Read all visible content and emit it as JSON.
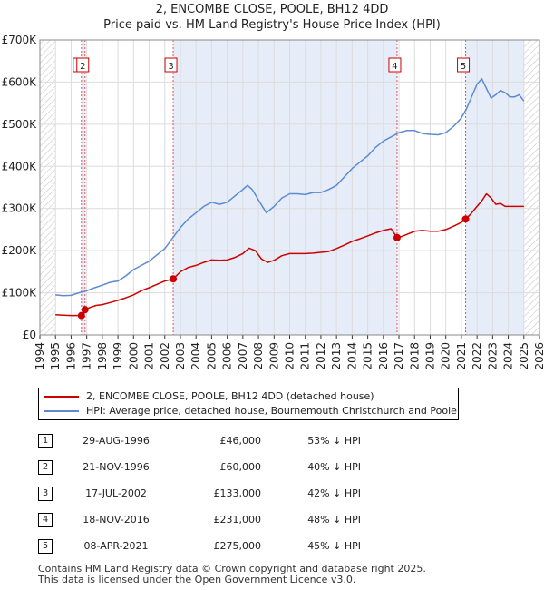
{
  "chart_data": {
    "type": "line",
    "title": "2, ENCOMBE CLOSE, POOLE, BH12 4DD",
    "subtitle": "Price paid vs. HM Land Registry's House Price Index (HPI)",
    "xlim": [
      1994,
      2026
    ],
    "ylim": [
      0,
      700000
    ],
    "y_ticks": [
      0,
      100000,
      200000,
      300000,
      400000,
      500000,
      600000,
      700000
    ],
    "y_tick_labels": [
      "£0",
      "£100K",
      "£200K",
      "£300K",
      "£400K",
      "£500K",
      "£600K",
      "£700K"
    ],
    "x_ticks": [
      1994,
      1995,
      1996,
      1997,
      1998,
      1999,
      2000,
      2001,
      2002,
      2003,
      2004,
      2005,
      2006,
      2007,
      2008,
      2009,
      2010,
      2011,
      2012,
      2013,
      2014,
      2015,
      2016,
      2017,
      2018,
      2019,
      2020,
      2021,
      2022,
      2023,
      2024,
      2025,
      2026
    ],
    "x_tick_labels": [
      "1994",
      "1995",
      "1996",
      "1997",
      "1998",
      "1999",
      "2000",
      "2001",
      "2002",
      "2003",
      "2004",
      "2005",
      "2006",
      "2007",
      "2008",
      "2009",
      "2010",
      "2011",
      "2012",
      "2013",
      "2014",
      "2015",
      "2016",
      "2017",
      "2018",
      "2019",
      "2020",
      "2021",
      "2022",
      "2023",
      "2024",
      "2025",
      "2026"
    ],
    "grid": true,
    "shaded_ranges": [
      [
        1996.66,
        1996.89
      ],
      [
        2002.54,
        2016.88
      ],
      [
        2021.27,
        2025.0
      ]
    ],
    "hatched_ranges": [
      [
        1994,
        1995
      ],
      [
        2025.0,
        2026
      ]
    ],
    "series": [
      {
        "name": "HPI: Average price, detached house, Bournemouth Christchurch and Poole",
        "color": "#5b8bd0",
        "x": [
          1995.0,
          1995.5,
          1996.0,
          1996.5,
          1997.0,
          1997.5,
          1998.0,
          1998.5,
          1999.0,
          1999.5,
          2000.0,
          2000.5,
          2001.0,
          2001.5,
          2002.0,
          2002.5,
          2003.0,
          2003.5,
          2004.0,
          2004.5,
          2005.0,
          2005.5,
          2006.0,
          2006.5,
          2007.0,
          2007.3,
          2007.6,
          2008.0,
          2008.5,
          2009.0,
          2009.5,
          2010.0,
          2010.5,
          2011.0,
          2011.5,
          2012.0,
          2012.5,
          2013.0,
          2013.5,
          2014.0,
          2014.5,
          2015.0,
          2015.5,
          2016.0,
          2016.5,
          2017.0,
          2017.5,
          2018.0,
          2018.5,
          2019.0,
          2019.5,
          2020.0,
          2020.5,
          2021.0,
          2021.3,
          2021.6,
          2022.0,
          2022.3,
          2022.6,
          2022.9,
          2023.2,
          2023.5,
          2023.8,
          2024.1,
          2024.4,
          2024.7,
          2025.0
        ],
        "values": [
          95000,
          93000,
          94000,
          100000,
          105000,
          112000,
          118000,
          125000,
          128000,
          140000,
          155000,
          165000,
          175000,
          190000,
          205000,
          230000,
          255000,
          275000,
          290000,
          305000,
          315000,
          310000,
          315000,
          330000,
          345000,
          355000,
          345000,
          320000,
          290000,
          305000,
          325000,
          335000,
          335000,
          333000,
          338000,
          338000,
          345000,
          355000,
          375000,
          395000,
          410000,
          425000,
          445000,
          460000,
          470000,
          480000,
          485000,
          485000,
          478000,
          476000,
          475000,
          480000,
          495000,
          515000,
          535000,
          560000,
          595000,
          608000,
          585000,
          562000,
          570000,
          580000,
          575000,
          565000,
          565000,
          570000,
          555000
        ]
      },
      {
        "name": "2, ENCOMBE CLOSE, POOLE, BH12 4DD (detached house)",
        "color": "#cc0000",
        "x": [
          1995.0,
          1995.5,
          1996.0,
          1996.66,
          1996.89,
          1997.2,
          1997.6,
          1998.0,
          1998.5,
          1999.0,
          1999.5,
          2000.0,
          2000.5,
          2001.0,
          2001.5,
          2002.0,
          2002.54,
          2003.0,
          2003.5,
          2004.0,
          2004.5,
          2005.0,
          2005.5,
          2006.0,
          2006.5,
          2007.0,
          2007.4,
          2007.8,
          2008.2,
          2008.6,
          2009.0,
          2009.5,
          2010.0,
          2010.5,
          2011.0,
          2011.5,
          2012.0,
          2012.5,
          2013.0,
          2013.5,
          2014.0,
          2014.5,
          2015.0,
          2015.5,
          2016.0,
          2016.5,
          2016.88,
          2017.2,
          2017.6,
          2018.0,
          2018.5,
          2019.0,
          2019.5,
          2020.0,
          2020.5,
          2021.0,
          2021.27,
          2021.6,
          2022.0,
          2022.3,
          2022.6,
          2022.9,
          2023.2,
          2023.5,
          2023.8,
          2024.2,
          2024.6,
          2025.0
        ],
        "values": [
          48000,
          47000,
          46000,
          46000,
          60000,
          65000,
          70000,
          72000,
          77000,
          82000,
          88000,
          95000,
          105000,
          112000,
          120000,
          128000,
          133000,
          150000,
          160000,
          165000,
          172000,
          178000,
          177000,
          178000,
          184000,
          193000,
          206000,
          200000,
          180000,
          172000,
          177000,
          188000,
          193000,
          193000,
          193000,
          194000,
          196000,
          198000,
          205000,
          213000,
          222000,
          228000,
          235000,
          242000,
          248000,
          252000,
          231000,
          234000,
          240000,
          246000,
          248000,
          246000,
          246000,
          250000,
          258000,
          267000,
          275000,
          287000,
          305000,
          318000,
          335000,
          325000,
          310000,
          312000,
          305000,
          305000,
          305000,
          305000
        ]
      }
    ],
    "sales": [
      {
        "num": "1",
        "x": 1996.66,
        "value": 46000
      },
      {
        "num": "2",
        "x": 1996.89,
        "value": 60000
      },
      {
        "num": "3",
        "x": 2002.54,
        "value": 133000
      },
      {
        "num": "4",
        "x": 2016.88,
        "value": 231000
      },
      {
        "num": "5",
        "x": 2021.27,
        "value": 275000
      }
    ]
  },
  "legend": {
    "property_label": "2, ENCOMBE CLOSE, POOLE, BH12 4DD (detached house)",
    "hpi_label": "HPI: Average price, detached house, Bournemouth Christchurch and Poole",
    "property_color": "#cc0000",
    "hpi_color": "#5b8bd0"
  },
  "table": [
    {
      "num": "1",
      "date": "29-AUG-1996",
      "price": "£46,000",
      "hpi": "53% ↓ HPI"
    },
    {
      "num": "2",
      "date": "21-NOV-1996",
      "price": "£60,000",
      "hpi": "40% ↓ HPI"
    },
    {
      "num": "3",
      "date": "17-JUL-2002",
      "price": "£133,000",
      "hpi": "42% ↓ HPI"
    },
    {
      "num": "4",
      "date": "18-NOV-2016",
      "price": "£231,000",
      "hpi": "48% ↓ HPI"
    },
    {
      "num": "5",
      "date": "08-APR-2021",
      "price": "£275,000",
      "hpi": "45% ↓ HPI"
    }
  ],
  "footer": {
    "line1": "Contains HM Land Registry data © Crown copyright and database right 2025.",
    "line2": "This data is licensed under the Open Government Licence v3.0."
  }
}
